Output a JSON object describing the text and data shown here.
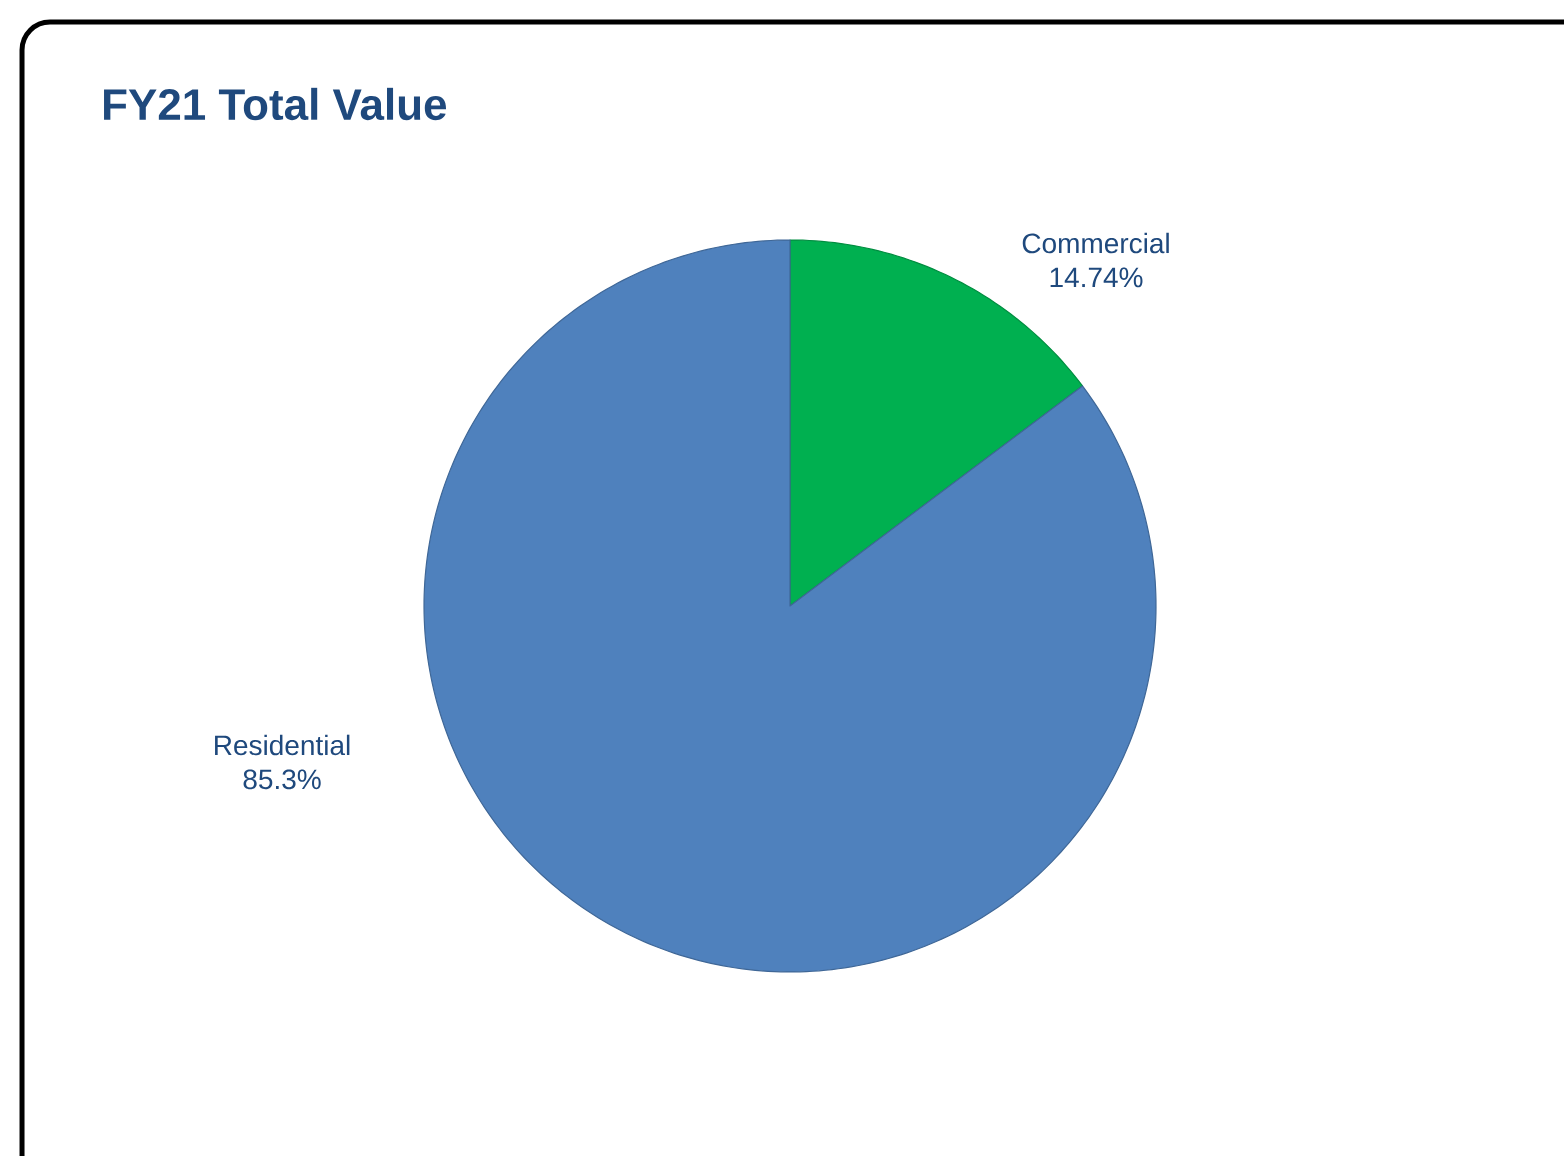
{
  "chart_data": {
    "type": "pie",
    "title": "FY21 Total Value",
    "categories": [
      "Commercial",
      "Residential"
    ],
    "values": [
      14.74,
      85.3
    ],
    "colors": [
      "#00b050",
      "#4f81bd"
    ],
    "value_labels": [
      "14.74%",
      "85.3%"
    ]
  }
}
